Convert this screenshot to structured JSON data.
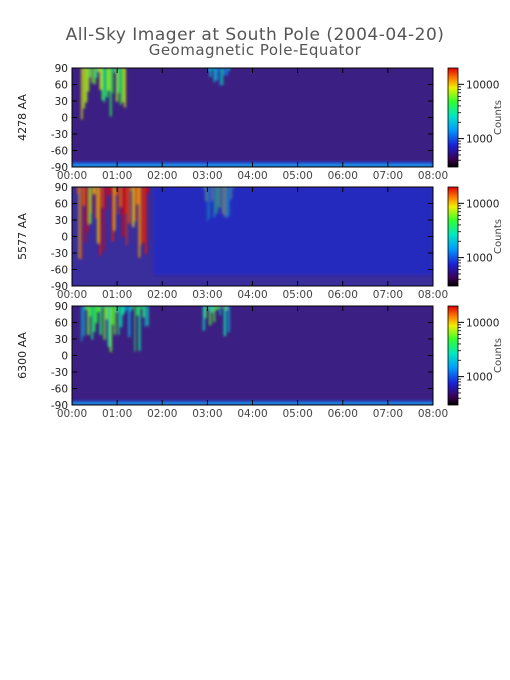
{
  "figure": {
    "title": "All-Sky Imager at South Pole (2004-04-20)",
    "subtitle": "Geomagnetic Pole-Equator"
  },
  "chart_data": [
    {
      "type": "heatmap",
      "ylabel": "4278 AA",
      "x_ticks": [
        "00:00",
        "01:00",
        "02:00",
        "03:00",
        "04:00",
        "05:00",
        "06:00",
        "07:00",
        "08:00"
      ],
      "x_range_hours": [
        0,
        8
      ],
      "y_ticks": [
        90,
        60,
        30,
        0,
        -30,
        -60,
        -90
      ],
      "ylim": [
        -90,
        90
      ],
      "colorbar": {
        "label": "Counts",
        "scale": "log",
        "ticks": [
          1000,
          10000
        ],
        "range": [
          300,
          20000
        ]
      },
      "features": [
        {
          "x_start": 0.2,
          "x_end": 1.2,
          "y_min": -20,
          "y_max": 90,
          "level": "high",
          "description_counts": 7000
        },
        {
          "x_start": 3.0,
          "x_end": 3.5,
          "y_min": 50,
          "y_max": 90,
          "level": "medium",
          "description_counts": 2500
        },
        {
          "x_start": 0.0,
          "x_end": 8.0,
          "y_min": -90,
          "y_max": -78,
          "level": "edge",
          "description_counts": 3000
        }
      ]
    },
    {
      "type": "heatmap",
      "ylabel": "5577 AA",
      "x_ticks": [
        "00:00",
        "01:00",
        "02:00",
        "03:00",
        "04:00",
        "05:00",
        "06:00",
        "07:00",
        "08:00"
      ],
      "x_range_hours": [
        0,
        8
      ],
      "y_ticks": [
        90,
        60,
        30,
        0,
        -30,
        -60,
        -90
      ],
      "ylim": [
        -90,
        90
      ],
      "colorbar": {
        "label": "Counts",
        "scale": "log",
        "ticks": [
          1000,
          10000
        ],
        "range": [
          300,
          20000
        ]
      },
      "features": [
        {
          "x_start": 0.1,
          "x_end": 1.7,
          "y_min": -65,
          "y_max": 90,
          "level": "very high",
          "description_counts": 18000
        },
        {
          "x_start": 2.9,
          "x_end": 3.6,
          "y_min": 15,
          "y_max": 90,
          "level": "high",
          "description_counts": 7000
        },
        {
          "x_start": 1.8,
          "x_end": 8.0,
          "y_min": -70,
          "y_max": 90,
          "level": "background",
          "description_counts": 800
        }
      ]
    },
    {
      "type": "heatmap",
      "ylabel": "6300 AA",
      "x_ticks": [
        "00:00",
        "01:00",
        "02:00",
        "03:00",
        "04:00",
        "05:00",
        "06:00",
        "07:00",
        "08:00"
      ],
      "x_range_hours": [
        0,
        8
      ],
      "y_ticks": [
        90,
        60,
        30,
        0,
        -30,
        -60,
        -90
      ],
      "ylim": [
        -90,
        90
      ],
      "colorbar": {
        "label": "Counts",
        "scale": "log",
        "ticks": [
          1000,
          10000
        ],
        "range": [
          300,
          20000
        ]
      },
      "features": [
        {
          "x_start": 0.2,
          "x_end": 1.7,
          "y_min": -20,
          "y_max": 90,
          "level": "high",
          "description_counts": 5000
        },
        {
          "x_start": 2.9,
          "x_end": 3.5,
          "y_min": 20,
          "y_max": 90,
          "level": "high",
          "description_counts": 5000
        },
        {
          "x_start": 0.0,
          "x_end": 8.0,
          "y_min": -90,
          "y_max": -80,
          "level": "edge",
          "description_counts": 4000
        }
      ]
    }
  ]
}
